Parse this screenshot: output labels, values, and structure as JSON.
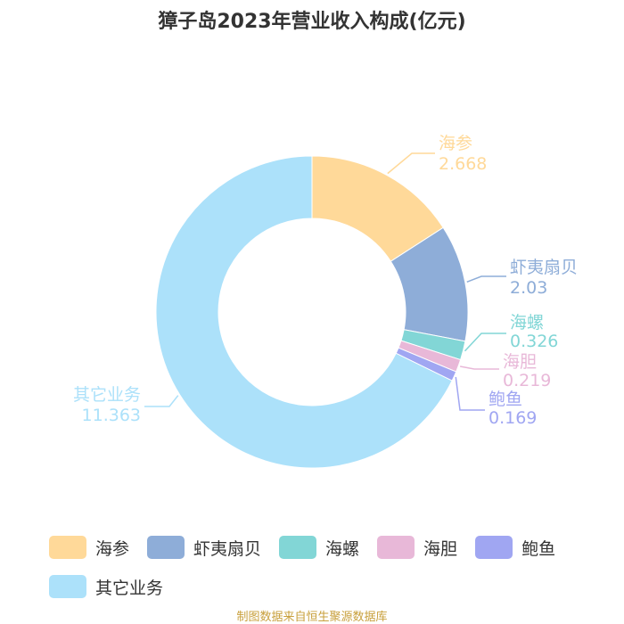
{
  "chart_data": {
    "type": "pie",
    "variant": "donut",
    "title": "獐子岛2023年营业收入构成(亿元)",
    "categories": [
      "海参",
      "虾夷扇贝",
      "海螺",
      "海胆",
      "鲍鱼",
      "其它业务"
    ],
    "values": [
      2.668,
      2.03,
      0.326,
      0.219,
      0.169,
      11.363
    ],
    "value_labels": [
      "2.668",
      "2.03",
      "0.326",
      "0.219",
      "0.169",
      "11.363"
    ],
    "colors": [
      "#FFD999",
      "#8EADD8",
      "#82D6D6",
      "#E8B8D8",
      "#A0A6F2",
      "#ACE1FA"
    ],
    "legend_position": "bottom"
  },
  "footer": "制图数据来自恒生聚源数据库"
}
